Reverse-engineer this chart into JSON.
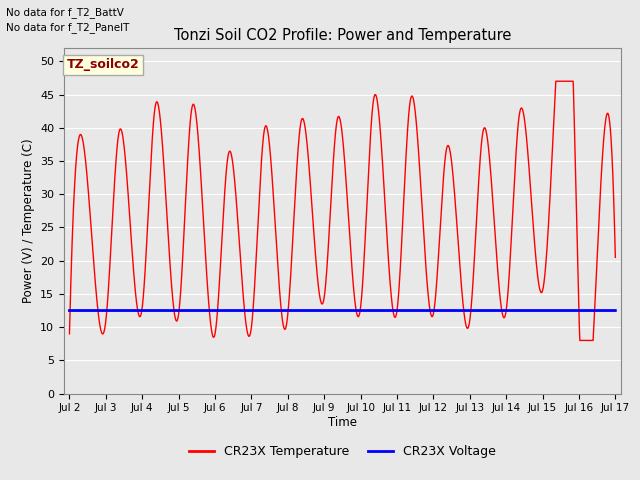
{
  "title": "Tonzi Soil CO2 Profile: Power and Temperature",
  "ylabel": "Power (V) / Temperature (C)",
  "xlabel": "Time",
  "no_data_text": [
    "No data for f_T2_BattV",
    "No data for f_T2_PanelT"
  ],
  "legend_label_text": "TZ_soilco2",
  "legend_entries": [
    "CR23X Temperature",
    "CR23X Voltage"
  ],
  "legend_colors": [
    "red",
    "blue"
  ],
  "ylim": [
    0,
    52
  ],
  "yticks": [
    0,
    5,
    10,
    15,
    20,
    25,
    30,
    35,
    40,
    45,
    50
  ],
  "x_start_day": 2,
  "x_end_day": 17,
  "x_tick_days": [
    2,
    3,
    4,
    5,
    6,
    7,
    8,
    9,
    10,
    11,
    12,
    13,
    14,
    15,
    16,
    17
  ],
  "voltage_value": 12.5,
  "background_color": "#e8e8e8",
  "plot_bg_color": "#e8e8e8",
  "grid_color": "white",
  "temp_color": "red",
  "voltage_color": "blue",
  "peaks": [
    38.5,
    39.0,
    43.0,
    42.5,
    35.5,
    39.5,
    40.5,
    41.0,
    44.0,
    43.5,
    36.5,
    39.0,
    41.5,
    45.5,
    20.5
  ],
  "troughs": [
    9.0,
    11.0,
    13.0,
    12.0,
    9.0,
    10.0,
    10.0,
    14.5,
    13.0,
    12.5,
    12.0,
    11.0,
    12.5,
    15.5,
    12.0
  ],
  "peak_times": [
    2.35,
    3.35,
    4.35,
    5.35,
    6.35,
    7.35,
    8.35,
    9.35,
    10.35,
    11.35,
    12.35,
    13.35,
    14.35,
    15.85,
    16.5
  ],
  "trough_times": [
    2.0,
    3.0,
    4.0,
    5.0,
    6.0,
    7.0,
    7.95,
    9.0,
    10.0,
    11.0,
    12.0,
    13.0,
    14.0,
    15.0,
    16.0
  ]
}
